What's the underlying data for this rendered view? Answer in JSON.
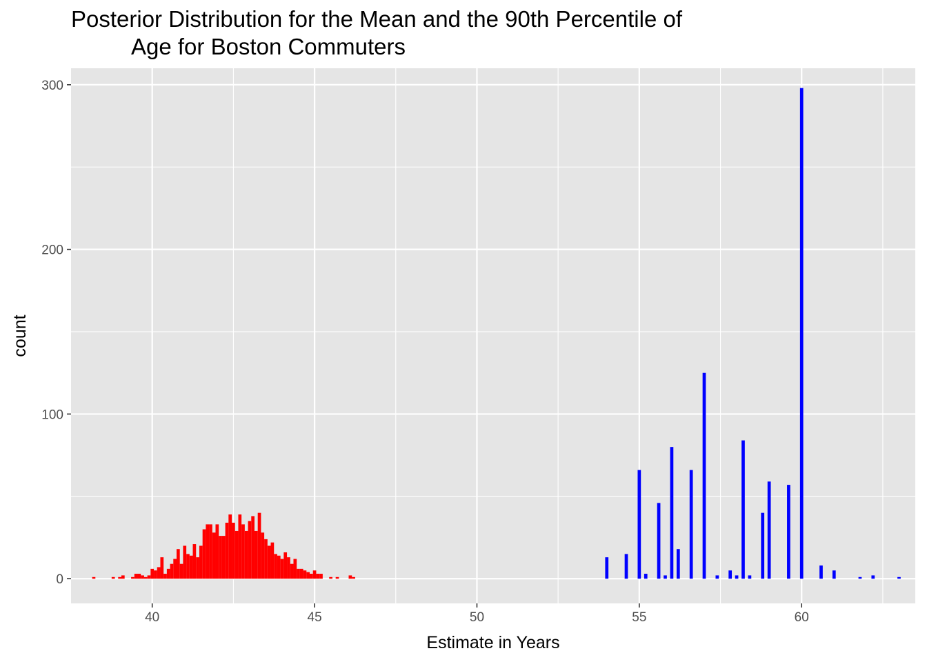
{
  "chart_data": {
    "type": "bar",
    "title_lines": [
      "Posterior Distribution for the Mean and the 90th Percentile of",
      "Age for Boston Commuters"
    ],
    "xlabel": "Estimate in Years",
    "ylabel": "count",
    "xlim": [
      37.5,
      63.5
    ],
    "ylim": [
      -15,
      310
    ],
    "xticks": [
      40,
      45,
      50,
      55,
      60
    ],
    "xtick_labels": [
      "40",
      "45",
      "50",
      "55",
      "60"
    ],
    "yticks": [
      0,
      100,
      200,
      300
    ],
    "ytick_labels": [
      "0",
      "100",
      "200",
      "300"
    ],
    "grid": true,
    "panel_background": "#e5e5e5",
    "grid_color": "#ffffff",
    "bin_width": 0.1,
    "series": [
      {
        "color": "#ff0000",
        "x": [
          38.2,
          38.8,
          39.0,
          39.1,
          39.4,
          39.5,
          39.6,
          39.7,
          39.8,
          39.9,
          40.0,
          40.1,
          40.2,
          40.3,
          40.4,
          40.5,
          40.6,
          40.7,
          40.8,
          40.9,
          41.0,
          41.1,
          41.2,
          41.3,
          41.4,
          41.5,
          41.6,
          41.7,
          41.8,
          41.9,
          42.0,
          42.1,
          42.2,
          42.3,
          42.4,
          42.5,
          42.6,
          42.7,
          42.8,
          42.9,
          43.0,
          43.1,
          43.2,
          43.3,
          43.4,
          43.5,
          43.6,
          43.7,
          43.8,
          43.9,
          44.0,
          44.1,
          44.2,
          44.3,
          44.4,
          44.5,
          44.6,
          44.7,
          44.8,
          44.9,
          45.0,
          45.1,
          45.2,
          45.5,
          45.7,
          46.1,
          46.2
        ],
        "values": [
          1,
          1,
          1,
          2,
          1,
          3,
          3,
          2,
          1,
          2,
          6,
          5,
          7,
          13,
          3,
          6,
          9,
          12,
          18,
          9,
          20,
          15,
          14,
          21,
          13,
          20,
          30,
          33,
          33,
          28,
          33,
          26,
          26,
          34,
          39,
          34,
          29,
          39,
          33,
          29,
          35,
          38,
          29,
          40,
          28,
          24,
          20,
          22,
          15,
          14,
          12,
          16,
          13,
          9,
          12,
          6,
          6,
          5,
          4,
          3,
          5,
          3,
          3,
          1,
          1,
          2,
          1
        ]
      },
      {
        "color": "#0000ff",
        "x": [
          54.0,
          54.6,
          55.0,
          55.2,
          55.6,
          55.8,
          56.0,
          56.2,
          56.6,
          57.0,
          57.4,
          57.8,
          58.0,
          58.2,
          58.4,
          58.8,
          59.0,
          59.6,
          60.0,
          60.6,
          61.0,
          61.8,
          62.2,
          63.0
        ],
        "values": [
          13,
          15,
          66,
          3,
          46,
          2,
          80,
          18,
          66,
          125,
          2,
          5,
          2,
          84,
          2,
          40,
          59,
          57,
          298,
          8,
          5,
          1,
          2,
          1
        ]
      }
    ]
  }
}
